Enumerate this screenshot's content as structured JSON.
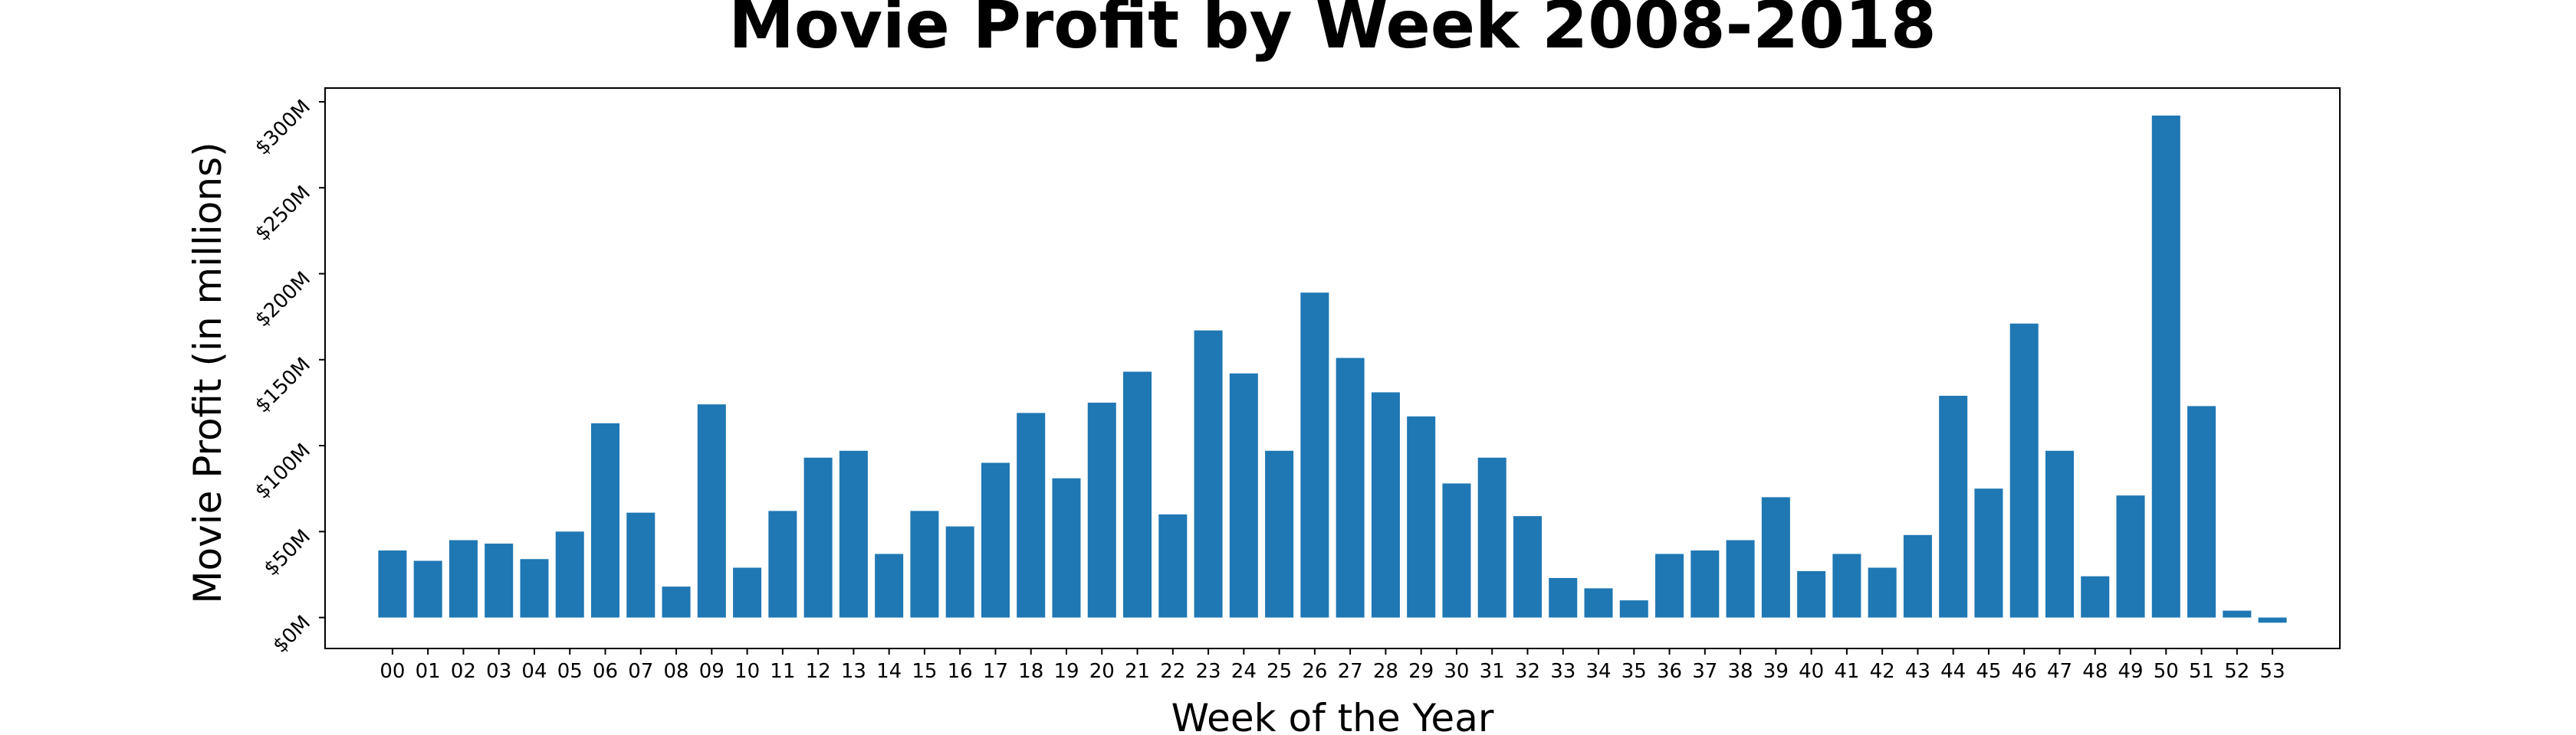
{
  "chart_data": {
    "type": "bar",
    "title": "Movie Profit by Week 2008-2018",
    "xlabel": "Week of the Year",
    "ylabel": "Movie Profit (in millions)",
    "categories": [
      "00",
      "01",
      "02",
      "03",
      "04",
      "05",
      "06",
      "07",
      "08",
      "09",
      "10",
      "11",
      "12",
      "13",
      "14",
      "15",
      "16",
      "17",
      "18",
      "19",
      "20",
      "21",
      "22",
      "23",
      "24",
      "25",
      "26",
      "27",
      "28",
      "29",
      "30",
      "31",
      "32",
      "33",
      "34",
      "35",
      "36",
      "37",
      "38",
      "39",
      "40",
      "41",
      "42",
      "43",
      "44",
      "45",
      "46",
      "47",
      "48",
      "49",
      "50",
      "51",
      "52",
      "53"
    ],
    "values": [
      39,
      33,
      45,
      43,
      34,
      50,
      113,
      61,
      18,
      124,
      29,
      62,
      93,
      97,
      37,
      62,
      53,
      90,
      119,
      81,
      125,
      143,
      60,
      167,
      142,
      97,
      189,
      151,
      131,
      117,
      78,
      93,
      59,
      23,
      17,
      10,
      37,
      39,
      45,
      70,
      27,
      37,
      29,
      48,
      129,
      75,
      171,
      97,
      24,
      71,
      292,
      123,
      4,
      -3
    ],
    "y_ticks": [
      0,
      50,
      100,
      150,
      200,
      250,
      300
    ],
    "y_tick_labels": [
      "$0M",
      "$50M",
      "$100M",
      "$150M",
      "$200M",
      "$250M",
      "$300M"
    ],
    "ylim": [
      -18,
      308
    ],
    "grid": false,
    "legend": "none",
    "colors": {
      "bar": "#1f77b4"
    }
  }
}
